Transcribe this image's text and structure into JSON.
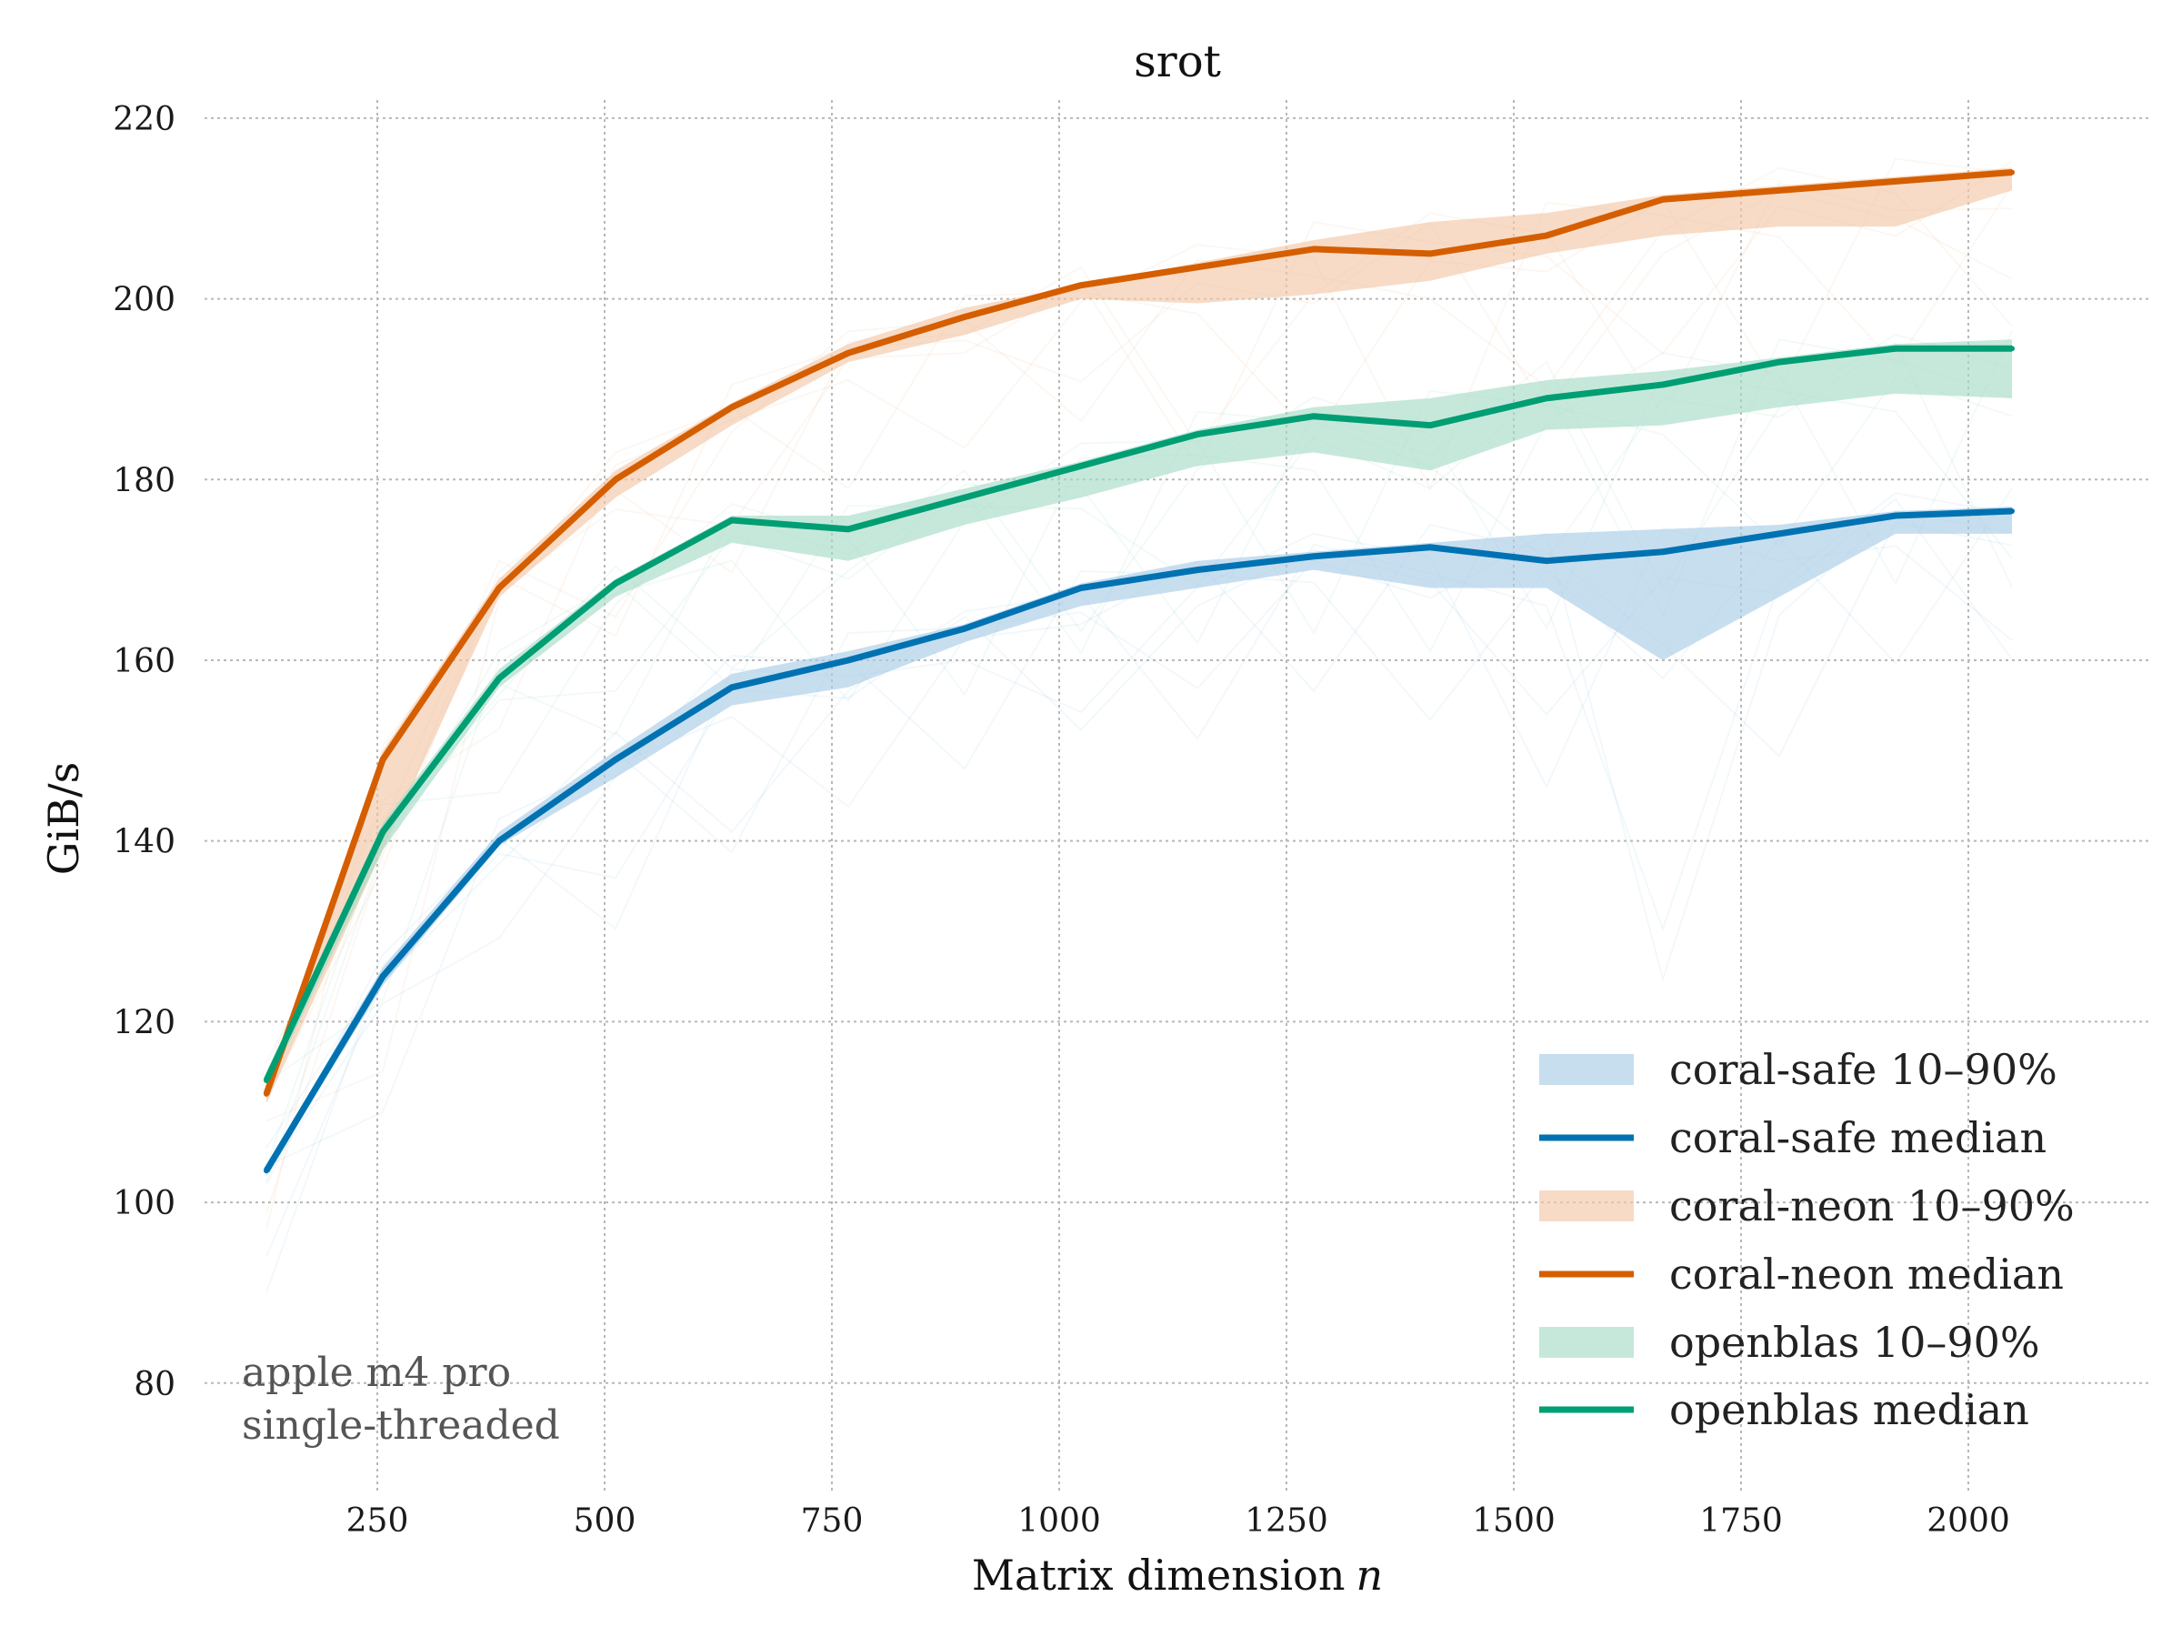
{
  "chart_data": {
    "type": "line",
    "title": "srot",
    "xlabel": "Matrix dimension",
    "xlabel_var": "n",
    "ylabel": "GiB/s",
    "xlim": [
      60,
      2200
    ],
    "ylim": [
      68,
      222
    ],
    "xticks": [
      250,
      500,
      750,
      1000,
      1250,
      1500,
      1750,
      2000
    ],
    "yticks": [
      80,
      100,
      120,
      140,
      160,
      180,
      200,
      220
    ],
    "grid": true,
    "legend_position": "bottom-right",
    "annotation": [
      "apple m4 pro",
      "single-threaded"
    ],
    "x": [
      128,
      256,
      384,
      512,
      640,
      768,
      896,
      1024,
      1152,
      1280,
      1408,
      1536,
      1664,
      1792,
      1920,
      2048
    ],
    "series": [
      {
        "name": "coral-safe",
        "color": "#0072b2",
        "band_color": "#a9cde6",
        "band_label": "coral-safe 10–90%",
        "median_label": "coral-safe median",
        "median": [
          103.5,
          125,
          140,
          149,
          157,
          160,
          163.5,
          168,
          170,
          171.5,
          172.5,
          171,
          172,
          174,
          176,
          176.5
        ],
        "p10": [
          103,
          124,
          139.5,
          147,
          155,
          157,
          162,
          166,
          168,
          170,
          168,
          168,
          160,
          167,
          174,
          174
        ],
        "p90": [
          104,
          126,
          141,
          150,
          158.5,
          161,
          164,
          168.5,
          171,
          172,
          173,
          174,
          174.5,
          175,
          176.5,
          177
        ]
      },
      {
        "name": "coral-neon",
        "color": "#d55e00",
        "band_color": "#f2c7a8",
        "band_label": "coral-neon 10–90%",
        "median_label": "coral-neon median",
        "median": [
          112,
          149,
          168,
          180,
          188,
          194,
          198,
          201.5,
          203.5,
          205.5,
          205,
          207,
          211,
          212,
          213,
          214
        ],
        "p10": [
          111,
          139,
          167,
          178,
          186,
          193,
          196,
          200,
          199.5,
          200.5,
          202,
          205,
          207,
          208,
          208,
          212
        ],
        "p90": [
          113,
          150,
          169,
          181,
          188.5,
          195,
          199,
          201.5,
          204,
          206.5,
          208.5,
          209.5,
          211.5,
          212.5,
          213.5,
          214.5
        ]
      },
      {
        "name": "openblas",
        "color": "#009e73",
        "band_color": "#a8dcc8",
        "band_label": "openblas 10–90%",
        "median_label": "openblas median",
        "median": [
          113.5,
          141,
          158,
          168.5,
          175.5,
          174.5,
          178,
          181.5,
          185,
          187,
          186,
          189,
          190.5,
          193,
          194.5,
          194.5
        ],
        "p10": [
          112.5,
          139,
          157,
          167,
          173,
          171,
          175,
          178,
          181.5,
          183,
          181,
          185.5,
          186,
          188,
          189.5,
          189
        ],
        "p90": [
          114,
          142,
          159,
          169,
          176,
          176,
          179,
          182,
          185.5,
          188,
          189,
          191,
          192,
          193.5,
          195,
          195.5
        ]
      }
    ]
  }
}
